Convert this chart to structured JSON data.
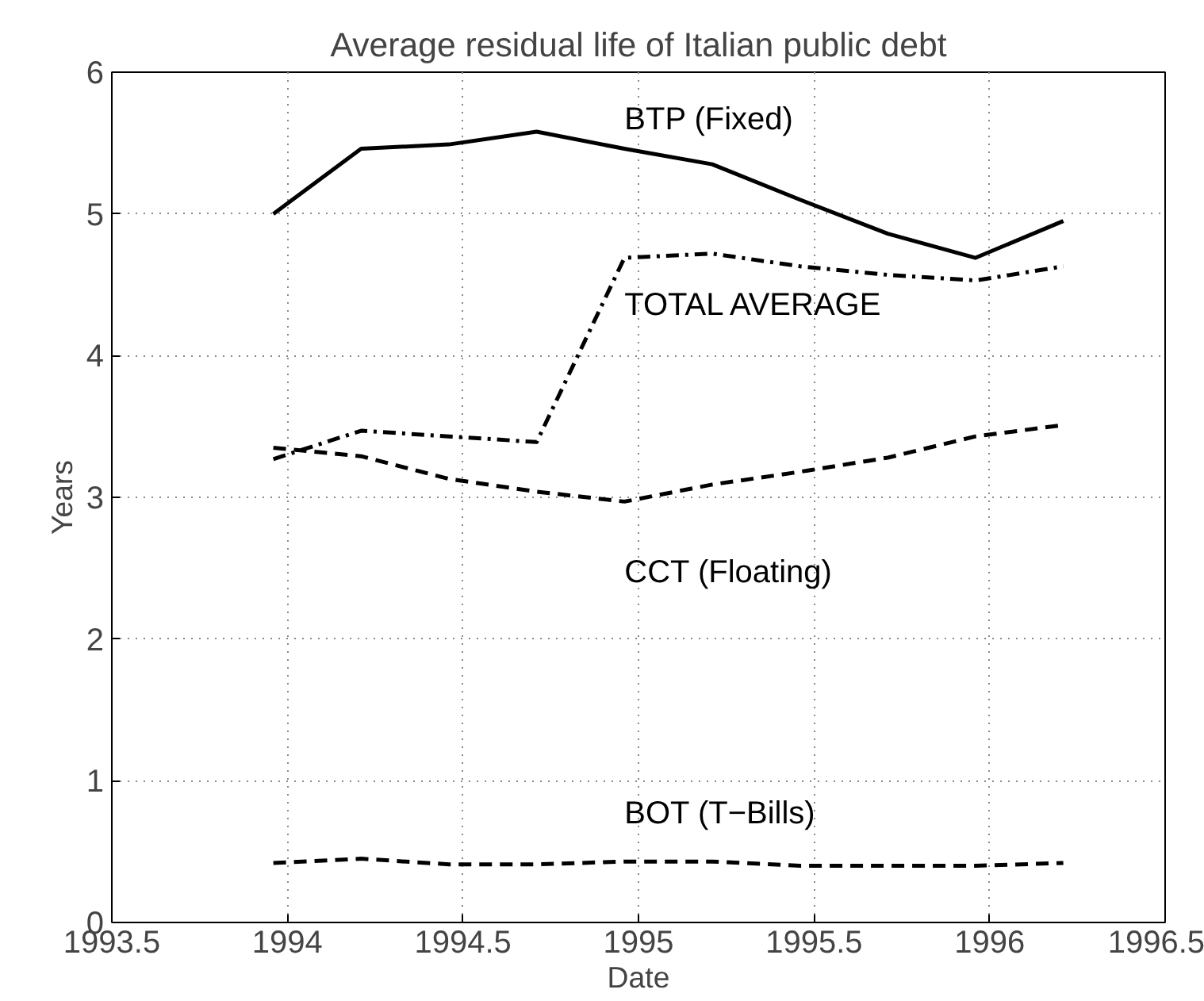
{
  "chart_data": {
    "type": "line",
    "title": "Average residual life of Italian public debt",
    "xlabel": "Date",
    "ylabel": "Years",
    "x": [
      1993.96,
      1994.21,
      1994.46,
      1994.71,
      1994.96,
      1995.21,
      1995.46,
      1995.71,
      1995.96,
      1996.21
    ],
    "series": [
      {
        "name": "BTP (Fixed)",
        "color": "#000000",
        "line_style": "solid",
        "values": [
          5.0,
          5.46,
          5.49,
          5.58,
          5.46,
          5.35,
          5.1,
          4.86,
          4.69,
          4.95
        ]
      },
      {
        "name": "TOTAL AVERAGE",
        "color": "#000000",
        "line_style": "dashdot",
        "values": [
          3.27,
          3.47,
          3.43,
          3.39,
          4.69,
          4.72,
          4.63,
          4.57,
          4.53,
          4.63
        ]
      },
      {
        "name": "CCT (Floating)",
        "color": "#000000",
        "line_style": "dashed",
        "values": [
          3.35,
          3.29,
          3.13,
          3.04,
          2.97,
          3.09,
          3.18,
          3.28,
          3.43,
          3.51
        ]
      },
      {
        "name": "BOT (T−Bills)",
        "color": "#000000",
        "line_style": "dashed",
        "values": [
          0.42,
          0.45,
          0.41,
          0.41,
          0.43,
          0.43,
          0.4,
          0.4,
          0.4,
          0.42
        ]
      }
    ],
    "xlim": [
      1993.5,
      1996.5
    ],
    "xticks": [
      1993.5,
      1994,
      1994.5,
      1995,
      1995.5,
      1996,
      1996.5
    ],
    "ylim": [
      0,
      6
    ],
    "yticks": [
      0,
      1,
      2,
      3,
      4,
      5,
      6
    ],
    "grid": true,
    "marker": "none"
  }
}
